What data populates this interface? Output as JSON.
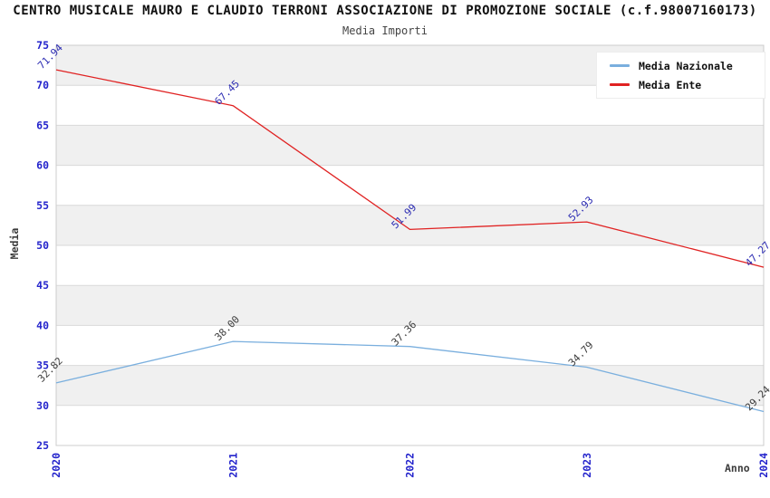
{
  "header": {
    "title": "CENTRO MUSICALE MAURO E CLAUDIO TERRONI ASSOCIAZIONE DI PROMOZIONE SOCIALE (c.f.98007160173)",
    "subtitle": "Media Importi"
  },
  "chart_data": {
    "type": "line",
    "title": "CENTRO MUSICALE MAURO E CLAUDIO TERRONI ASSOCIAZIONE DI PROMOZIONE SOCIALE (c.f.98007160173)",
    "subtitle": "Media Importi",
    "xlabel": "Anno",
    "ylabel": "Media",
    "categories": [
      "2020",
      "2021",
      "2022",
      "2023",
      "2024"
    ],
    "series": [
      {
        "name": "Media Nazionale",
        "color": "#7aafde",
        "label_color": "#3c3c3c",
        "values": [
          32.82,
          38.0,
          37.36,
          34.79,
          29.24
        ]
      },
      {
        "name": "Media Ente",
        "color": "#e02222",
        "label_color": "#2b2bb2",
        "values": [
          71.94,
          67.45,
          51.99,
          52.93,
          47.27
        ]
      }
    ],
    "ylim": [
      25,
      75
    ],
    "ytick_step": 5,
    "yticks": [
      25,
      30,
      35,
      40,
      45,
      50,
      55,
      60,
      65,
      70,
      75
    ],
    "grid": true,
    "legend_position": "top-right",
    "band_colors": [
      "#f0f0f0",
      "#ffffff"
    ],
    "grid_color": "#d9d9d9",
    "spine_color": "#cccccc",
    "tick_label_color": "#2424cc"
  },
  "legend": {
    "items": [
      {
        "label": "Media Nazionale",
        "color": "#7aafde"
      },
      {
        "label": "Media Ente",
        "color": "#e02222"
      }
    ]
  },
  "axes": {
    "x_title": "Anno",
    "y_title": "Media"
  }
}
